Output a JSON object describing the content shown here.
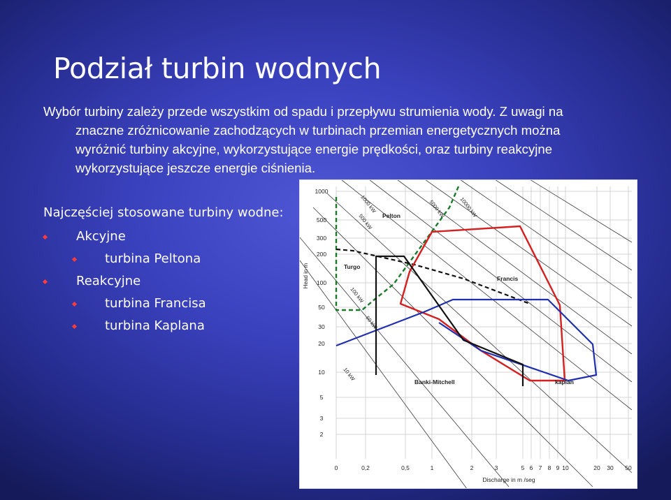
{
  "slide": {
    "title": "Podział turbin wodnych",
    "intro_lines": [
      "Wybór turbiny zależy przede wszystkim od spadu i przepływu strumienia wody. Z uwagi na",
      "znaczne zróżnicowanie zachodzących w turbinach przemian energetycznych można",
      "wyróżnić turbiny akcyjne, wykorzystujące energie prędkości, oraz turbiny reakcyjne",
      "wykorzystujące jeszcze energie ciśnienia."
    ],
    "list_heading": "Najczęściej stosowane turbiny wodne:",
    "list": [
      {
        "label": "Akcyjne",
        "children": [
          "turbina Peltona"
        ]
      },
      {
        "label": "Reakcyjne",
        "children": [
          "turbina Francisa",
          "turbina Kaplana"
        ]
      }
    ],
    "bullet_color": "#ff3b3b"
  },
  "chart_data": {
    "type": "line",
    "xlabel": "Discharge in m /seg",
    "ylabel": "Head in m",
    "x_ticks": [
      "0",
      "0,2",
      "0,5",
      "1",
      "2",
      "3",
      "5",
      "6",
      "7",
      "8",
      "9",
      "10",
      "20",
      "30",
      "50"
    ],
    "y_ticks": [
      "1000",
      "500",
      "300",
      "200",
      "100",
      "50",
      "30",
      "20",
      "10",
      "5",
      "3",
      "2"
    ],
    "power_lines": [
      "10 kW",
      "50 kW",
      "100 kW",
      "500 kW",
      "1000 kW",
      "5000 kW",
      "10000 kW"
    ],
    "series": [
      {
        "name": "Pelton",
        "color": "#1a7a2a",
        "style": "dashed"
      },
      {
        "name": "Turgo",
        "color": "#111111",
        "style": "dashed"
      },
      {
        "name": "Francis",
        "color": "#d42020",
        "style": "solid"
      },
      {
        "name": "kaplan",
        "color": "#1f2fb0",
        "style": "solid"
      },
      {
        "name": "Banki-Mitchell",
        "color": "#111111",
        "style": "solid"
      }
    ],
    "grid": true
  }
}
